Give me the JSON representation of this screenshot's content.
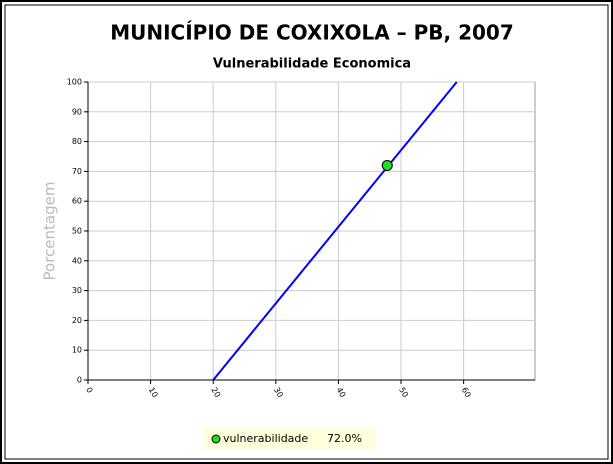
{
  "chart_data": {
    "type": "line",
    "title": "MUNICÍPIO DE COXIXOLA – PB, 2007",
    "subtitle": "Vulnerabilidade Economica",
    "ylabel": "Porcentagem",
    "series": [
      {
        "name": "vulnerabilidade",
        "color": "#0000ff",
        "x": [
          20,
          58.9
        ],
        "values": [
          0,
          100
        ]
      }
    ],
    "point": {
      "x": 47.8,
      "value": 72,
      "value_label": "72.0%",
      "color": "#22dd22"
    },
    "xlim": [
      0,
      71.4
    ],
    "xticks": [
      0,
      10,
      20,
      30,
      40,
      50,
      60
    ],
    "ylim": [
      0,
      100
    ],
    "yticks": [
      0,
      10,
      20,
      30,
      40,
      50,
      60,
      70,
      80,
      90,
      100
    ],
    "grid": true
  }
}
